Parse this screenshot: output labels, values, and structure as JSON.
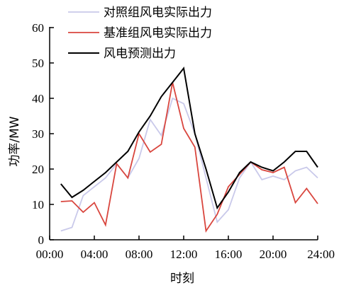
{
  "chart_data": {
    "type": "line",
    "xlabel": "时刻",
    "ylabel": "功率/MW",
    "xlim": [
      0,
      24
    ],
    "ylim": [
      0,
      60
    ],
    "x_ticks": [
      {
        "value": 0,
        "label": "00:00"
      },
      {
        "value": 4,
        "label": "04:00"
      },
      {
        "value": 8,
        "label": "08:00"
      },
      {
        "value": 12,
        "label": "12:00"
      },
      {
        "value": 16,
        "label": "16:00"
      },
      {
        "value": 20,
        "label": "20:00"
      },
      {
        "value": 24,
        "label": "24:00"
      }
    ],
    "y_ticks": [
      {
        "value": 0,
        "label": "0"
      },
      {
        "value": 10,
        "label": "10"
      },
      {
        "value": 20,
        "label": "20"
      },
      {
        "value": 30,
        "label": "30"
      },
      {
        "value": 40,
        "label": "40"
      },
      {
        "value": 50,
        "label": "50"
      },
      {
        "value": 60,
        "label": "60"
      }
    ],
    "x": [
      1,
      2,
      3,
      4,
      5,
      6,
      7,
      8,
      9,
      10,
      11,
      12,
      13,
      14,
      15,
      16,
      17,
      18,
      19,
      20,
      21,
      22,
      23,
      24
    ],
    "legend_position": "top",
    "grid": false,
    "series": [
      {
        "name": "对照组风电实际出力",
        "color": "#c9c9ea",
        "values": [
          2.5,
          3.5,
          12.5,
          15,
          17.5,
          21.5,
          17.5,
          23,
          34,
          29.5,
          40,
          38.5,
          30,
          17.5,
          5,
          8.5,
          17.5,
          22,
          17,
          18,
          17,
          19.5,
          20.5,
          17.5
        ]
      },
      {
        "name": "基准组风电实际出力",
        "color": "#d9463e",
        "values": [
          10.8,
          11,
          7.8,
          10.5,
          4.2,
          21.5,
          17.5,
          30,
          24.8,
          27,
          44.5,
          31.5,
          26.2,
          2.5,
          7.2,
          15,
          18.5,
          22,
          19.8,
          19,
          20.5,
          10.5,
          14.5,
          10.2
        ]
      },
      {
        "name": "风电预测出力",
        "color": "#000000",
        "values": [
          15.8,
          12,
          14,
          16.5,
          19,
          22,
          25,
          30.5,
          35,
          40.5,
          44.5,
          48.5,
          30,
          20,
          9,
          13.5,
          19,
          22,
          20.5,
          19.5,
          22,
          25,
          25,
          20.5
        ]
      }
    ]
  }
}
